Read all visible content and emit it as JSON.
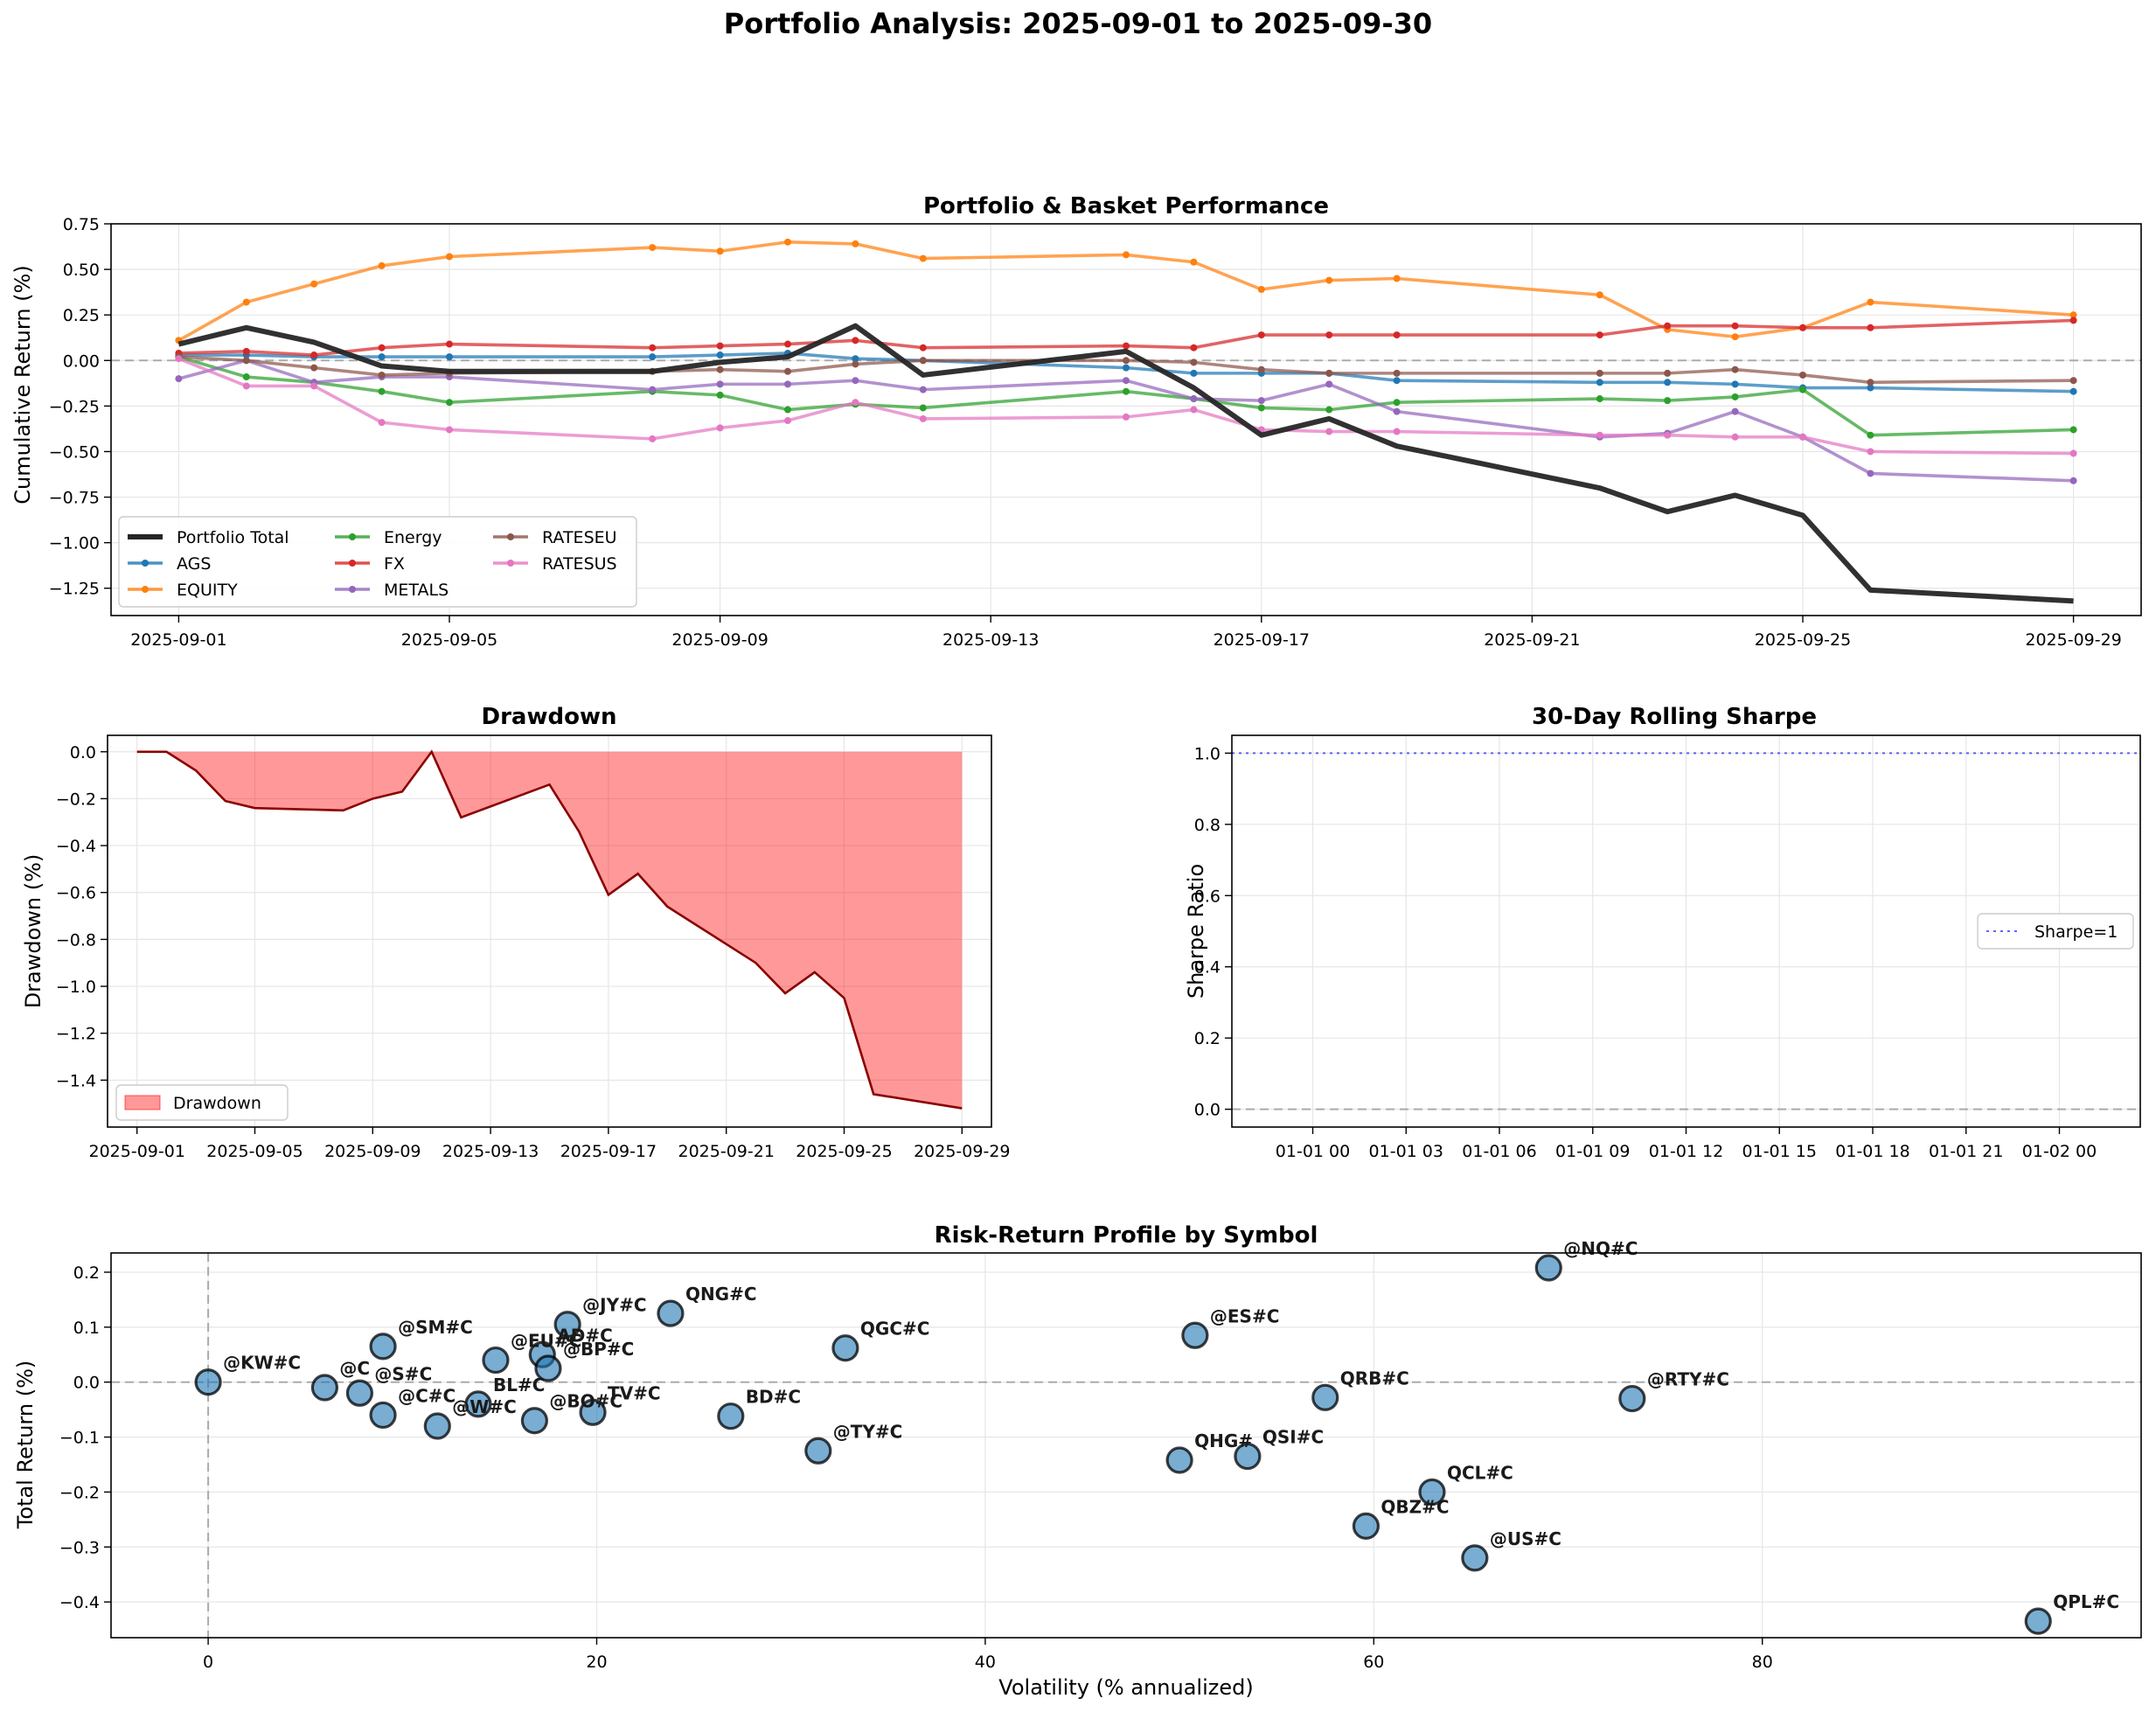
{
  "figure": {
    "suptitle": "Portfolio Analysis: 2025-09-01 to 2025-09-30"
  },
  "chart_data": [
    {
      "id": "performance",
      "type": "line",
      "title": "Portfolio & Basket Performance",
      "xlabel": "",
      "ylabel": "Cumulative Return (%)",
      "xlim": [
        "2025-08-31",
        "2025-09-30"
      ],
      "ylim": [
        -1.4,
        0.75
      ],
      "x_ticks": [
        "2025-09-01",
        "2025-09-05",
        "2025-09-09",
        "2025-09-13",
        "2025-09-17",
        "2025-09-21",
        "2025-09-25",
        "2025-09-29"
      ],
      "y_ticks": [
        -1.25,
        -1.0,
        -0.75,
        -0.5,
        -0.25,
        0.0,
        0.25,
        0.5,
        0.75
      ],
      "y_tick_labels": [
        "−1.25",
        "−1.00",
        "−0.75",
        "−0.50",
        "−0.25",
        "0.00",
        "0.25",
        "0.50",
        "0.75"
      ],
      "reference_line": 0,
      "grid": true,
      "legend_location": "lower left",
      "x": [
        "2025-09-01",
        "2025-09-02",
        "2025-09-03",
        "2025-09-04",
        "2025-09-05",
        "2025-09-08",
        "2025-09-09",
        "2025-09-10",
        "2025-09-11",
        "2025-09-12",
        "2025-09-15",
        "2025-09-16",
        "2025-09-17",
        "2025-09-18",
        "2025-09-19",
        "2025-09-22",
        "2025-09-23",
        "2025-09-24",
        "2025-09-25",
        "2025-09-26",
        "2025-09-29"
      ],
      "series": [
        {
          "name": "Portfolio Total",
          "color": "#262626",
          "markers": false,
          "values": [
            0.09,
            0.18,
            0.1,
            -0.03,
            -0.06,
            -0.06,
            -0.01,
            0.02,
            0.19,
            -0.08,
            0.05,
            -0.15,
            -0.41,
            -0.32,
            -0.47,
            -0.7,
            -0.83,
            -0.74,
            -0.85,
            -1.26,
            -1.32
          ]
        },
        {
          "name": "AGS",
          "color": "#1f77b4",
          "markers": true,
          "values": [
            0.03,
            0.03,
            0.02,
            0.02,
            0.02,
            0.02,
            0.03,
            0.04,
            0.01,
            0.0,
            -0.04,
            -0.07,
            -0.07,
            -0.07,
            -0.11,
            -0.12,
            -0.12,
            -0.13,
            -0.15,
            -0.15,
            -0.17
          ]
        },
        {
          "name": "EQUITY",
          "color": "#ff7f0e",
          "markers": true,
          "values": [
            0.11,
            0.32,
            0.42,
            0.52,
            0.57,
            0.62,
            0.6,
            0.65,
            0.64,
            0.56,
            0.58,
            0.54,
            0.39,
            0.44,
            0.45,
            0.36,
            0.17,
            0.13,
            0.18,
            0.32,
            0.25
          ]
        },
        {
          "name": "Energy",
          "color": "#2ca02c",
          "markers": true,
          "values": [
            0.02,
            -0.09,
            -0.12,
            -0.17,
            -0.23,
            -0.17,
            -0.19,
            -0.27,
            -0.24,
            -0.26,
            -0.17,
            -0.21,
            -0.26,
            -0.27,
            -0.23,
            -0.21,
            -0.22,
            -0.2,
            -0.16,
            -0.41,
            -0.38
          ]
        },
        {
          "name": "FX",
          "color": "#d62728",
          "markers": true,
          "values": [
            0.04,
            0.05,
            0.03,
            0.07,
            0.09,
            0.07,
            0.08,
            0.09,
            0.11,
            0.07,
            0.08,
            0.07,
            0.14,
            0.14,
            0.14,
            0.14,
            0.19,
            0.19,
            0.18,
            0.18,
            0.22
          ]
        },
        {
          "name": "METALS",
          "color": "#9467bd",
          "markers": true,
          "values": [
            -0.1,
            0.0,
            -0.12,
            -0.09,
            -0.09,
            -0.16,
            -0.13,
            -0.13,
            -0.11,
            -0.16,
            -0.11,
            -0.21,
            -0.22,
            -0.13,
            -0.28,
            -0.42,
            -0.4,
            -0.28,
            -0.42,
            -0.62,
            -0.66
          ]
        },
        {
          "name": "RATESEU",
          "color": "#8c564b",
          "markers": true,
          "values": [
            0.02,
            0.0,
            -0.04,
            -0.08,
            -0.07,
            -0.06,
            -0.05,
            -0.06,
            -0.02,
            0.0,
            0.0,
            -0.01,
            -0.05,
            -0.07,
            -0.07,
            -0.07,
            -0.07,
            -0.05,
            -0.08,
            -0.12,
            -0.11
          ]
        },
        {
          "name": "RATESUS",
          "color": "#e377c2",
          "markers": true,
          "values": [
            0.01,
            -0.14,
            -0.14,
            -0.34,
            -0.38,
            -0.43,
            -0.37,
            -0.33,
            -0.23,
            -0.32,
            -0.31,
            -0.27,
            -0.38,
            -0.39,
            -0.39,
            -0.41,
            -0.41,
            -0.42,
            -0.42,
            -0.5,
            -0.51
          ]
        }
      ]
    },
    {
      "id": "drawdown",
      "type": "area",
      "title": "Drawdown",
      "xlabel": "",
      "ylabel": "Drawdown (%)",
      "xlim": [
        "2025-08-31",
        "2025-09-30"
      ],
      "ylim": [
        -1.6,
        0.07
      ],
      "x_ticks": [
        "2025-09-01",
        "2025-09-05",
        "2025-09-09",
        "2025-09-13",
        "2025-09-17",
        "2025-09-21",
        "2025-09-25",
        "2025-09-29"
      ],
      "y_ticks": [
        -1.4,
        -1.2,
        -1.0,
        -0.8,
        -0.6,
        -0.4,
        -0.2,
        0.0
      ],
      "y_tick_labels": [
        "−1.4",
        "−1.2",
        "−1.0",
        "−0.8",
        "−0.6",
        "−0.4",
        "−0.2",
        "0.0"
      ],
      "grid": true,
      "legend_location": "lower left",
      "series": [
        {
          "name": "Drawdown",
          "color": "#ff0000",
          "line_color": "#8b0000",
          "x": [
            "2025-09-01",
            "2025-09-02",
            "2025-09-03",
            "2025-09-04",
            "2025-09-05",
            "2025-09-08",
            "2025-09-09",
            "2025-09-10",
            "2025-09-11",
            "2025-09-12",
            "2025-09-15",
            "2025-09-16",
            "2025-09-17",
            "2025-09-18",
            "2025-09-19",
            "2025-09-22",
            "2025-09-23",
            "2025-09-24",
            "2025-09-25",
            "2025-09-26",
            "2025-09-29"
          ],
          "values": [
            0.0,
            0.0,
            -0.08,
            -0.21,
            -0.24,
            -0.25,
            -0.2,
            -0.17,
            0.0,
            -0.28,
            -0.14,
            -0.34,
            -0.61,
            -0.52,
            -0.66,
            -0.9,
            -1.03,
            -0.94,
            -1.05,
            -1.46,
            -1.52
          ]
        }
      ]
    },
    {
      "id": "sharpe",
      "type": "line",
      "title": "30-Day Rolling Sharpe",
      "xlabel": "",
      "ylabel": "Sharpe Ratio",
      "xlim_hours": [
        -2.6,
        26.6
      ],
      "x_ticks_hours": [
        0,
        3,
        6,
        9,
        12,
        15,
        18,
        21,
        24
      ],
      "x_tick_labels": [
        "01-01 00",
        "01-01 03",
        "01-01 06",
        "01-01 09",
        "01-01 12",
        "01-01 15",
        "01-01 18",
        "01-01 21",
        "01-02 00"
      ],
      "ylim": [
        -0.05,
        1.05
      ],
      "y_ticks": [
        0.0,
        0.2,
        0.4,
        0.6,
        0.8,
        1.0
      ],
      "y_tick_labels": [
        "0.0",
        "0.2",
        "0.4",
        "0.6",
        "0.8",
        "1.0"
      ],
      "grid": true,
      "legend_location": "center right",
      "series": [],
      "reference_lines": [
        {
          "name": "Sharpe=1",
          "y": 1.0,
          "color": "#0000ff",
          "style": "dotted",
          "in_legend": true
        },
        {
          "y": 0.0,
          "color": "#808080",
          "style": "dashed",
          "in_legend": false
        }
      ]
    },
    {
      "id": "risk_return",
      "type": "scatter",
      "title": "Risk-Return Profile by Symbol",
      "xlabel": "Volatility (% annualized)",
      "ylabel": "Total Return (%)",
      "xlim": [
        -5,
        99.5
      ],
      "ylim": [
        -0.465,
        0.235
      ],
      "x_ticks": [
        0,
        20,
        40,
        60,
        80
      ],
      "x_tick_labels": [
        "0",
        "20",
        "40",
        "60",
        "80"
      ],
      "y_ticks": [
        -0.4,
        -0.3,
        -0.2,
        -0.1,
        0.0,
        0.1,
        0.2
      ],
      "y_tick_labels": [
        "−0.4",
        "−0.3",
        "−0.2",
        "−0.1",
        "0.0",
        "0.1",
        "0.2"
      ],
      "reference_lines": [
        "x=0",
        "y=0"
      ],
      "grid": true,
      "marker_color": "#1f77b4",
      "points": [
        {
          "label": "@KW#C",
          "x": 0.0,
          "y": 0.0
        },
        {
          "label": "@C",
          "x": 6.0,
          "y": -0.01
        },
        {
          "label": "@S#C",
          "x": 7.8,
          "y": -0.02
        },
        {
          "label": "@SM#C",
          "x": 9.0,
          "y": 0.065
        },
        {
          "label": "@C#C",
          "x": 9.0,
          "y": -0.06
        },
        {
          "label": "@W#C",
          "x": 11.8,
          "y": -0.08
        },
        {
          "label": "BL#C",
          "x": 13.9,
          "y": -0.04
        },
        {
          "label": "@EU#C",
          "x": 14.8,
          "y": 0.04
        },
        {
          "label": "@BO#C",
          "x": 16.8,
          "y": -0.07
        },
        {
          "label": "AD#C",
          "x": 17.2,
          "y": 0.05
        },
        {
          "label": "@BP#C",
          "x": 17.5,
          "y": 0.025
        },
        {
          "label": "@JY#C",
          "x": 18.5,
          "y": 0.105
        },
        {
          "label": "TV#C",
          "x": 19.8,
          "y": -0.055
        },
        {
          "label": "QNG#C",
          "x": 23.8,
          "y": 0.125
        },
        {
          "label": "BD#C",
          "x": 26.9,
          "y": -0.062
        },
        {
          "label": "@TY#C",
          "x": 31.4,
          "y": -0.125
        },
        {
          "label": "QGC#C",
          "x": 32.8,
          "y": 0.062
        },
        {
          "label": "QHG#",
          "x": 50.0,
          "y": -0.142
        },
        {
          "label": "@ES#C",
          "x": 50.8,
          "y": 0.085
        },
        {
          "label": "QSI#C",
          "x": 53.5,
          "y": -0.135
        },
        {
          "label": "QRB#C",
          "x": 57.5,
          "y": -0.028
        },
        {
          "label": "QBZ#C",
          "x": 59.6,
          "y": -0.262
        },
        {
          "label": "QCL#C",
          "x": 63.0,
          "y": -0.2
        },
        {
          "label": "@US#C",
          "x": 65.2,
          "y": -0.32
        },
        {
          "label": "@NQ#C",
          "x": 69.0,
          "y": 0.208
        },
        {
          "label": "@RTY#C",
          "x": 73.3,
          "y": -0.03
        },
        {
          "label": "QPL#C",
          "x": 94.2,
          "y": -0.435
        }
      ]
    }
  ]
}
